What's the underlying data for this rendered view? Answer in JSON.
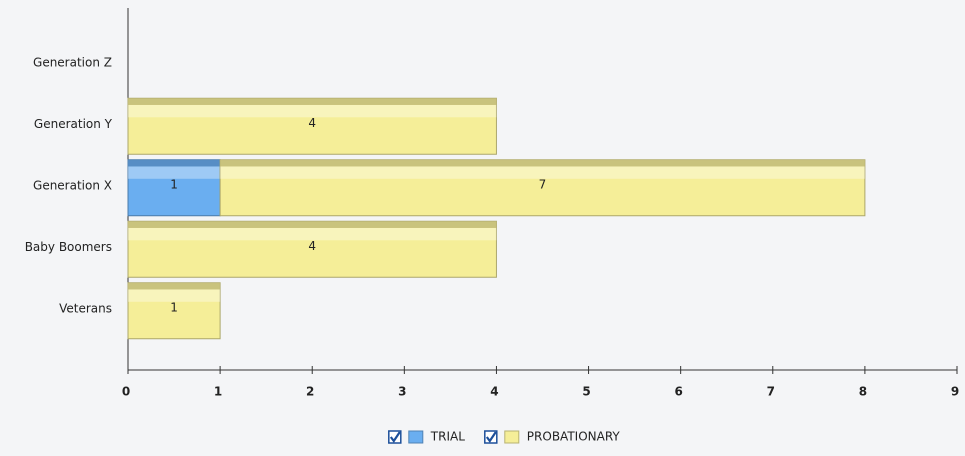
{
  "chart_data": {
    "type": "stacked_hbar",
    "categories": [
      "Generation Z",
      "Generation Y",
      "Generation X",
      "Baby Boomers",
      "Veterans"
    ],
    "series": [
      {
        "name": "TRIAL",
        "color": "#6aaef0",
        "values": [
          0,
          0,
          1,
          0,
          0
        ]
      },
      {
        "name": "PROBATIONARY",
        "color": "#f5ee98",
        "values": [
          0,
          4,
          7,
          4,
          1
        ]
      }
    ],
    "xlim": [
      0,
      9
    ],
    "xticks": [
      0,
      1,
      2,
      3,
      4,
      5,
      6,
      7,
      8,
      9
    ],
    "legend": "bottom"
  }
}
